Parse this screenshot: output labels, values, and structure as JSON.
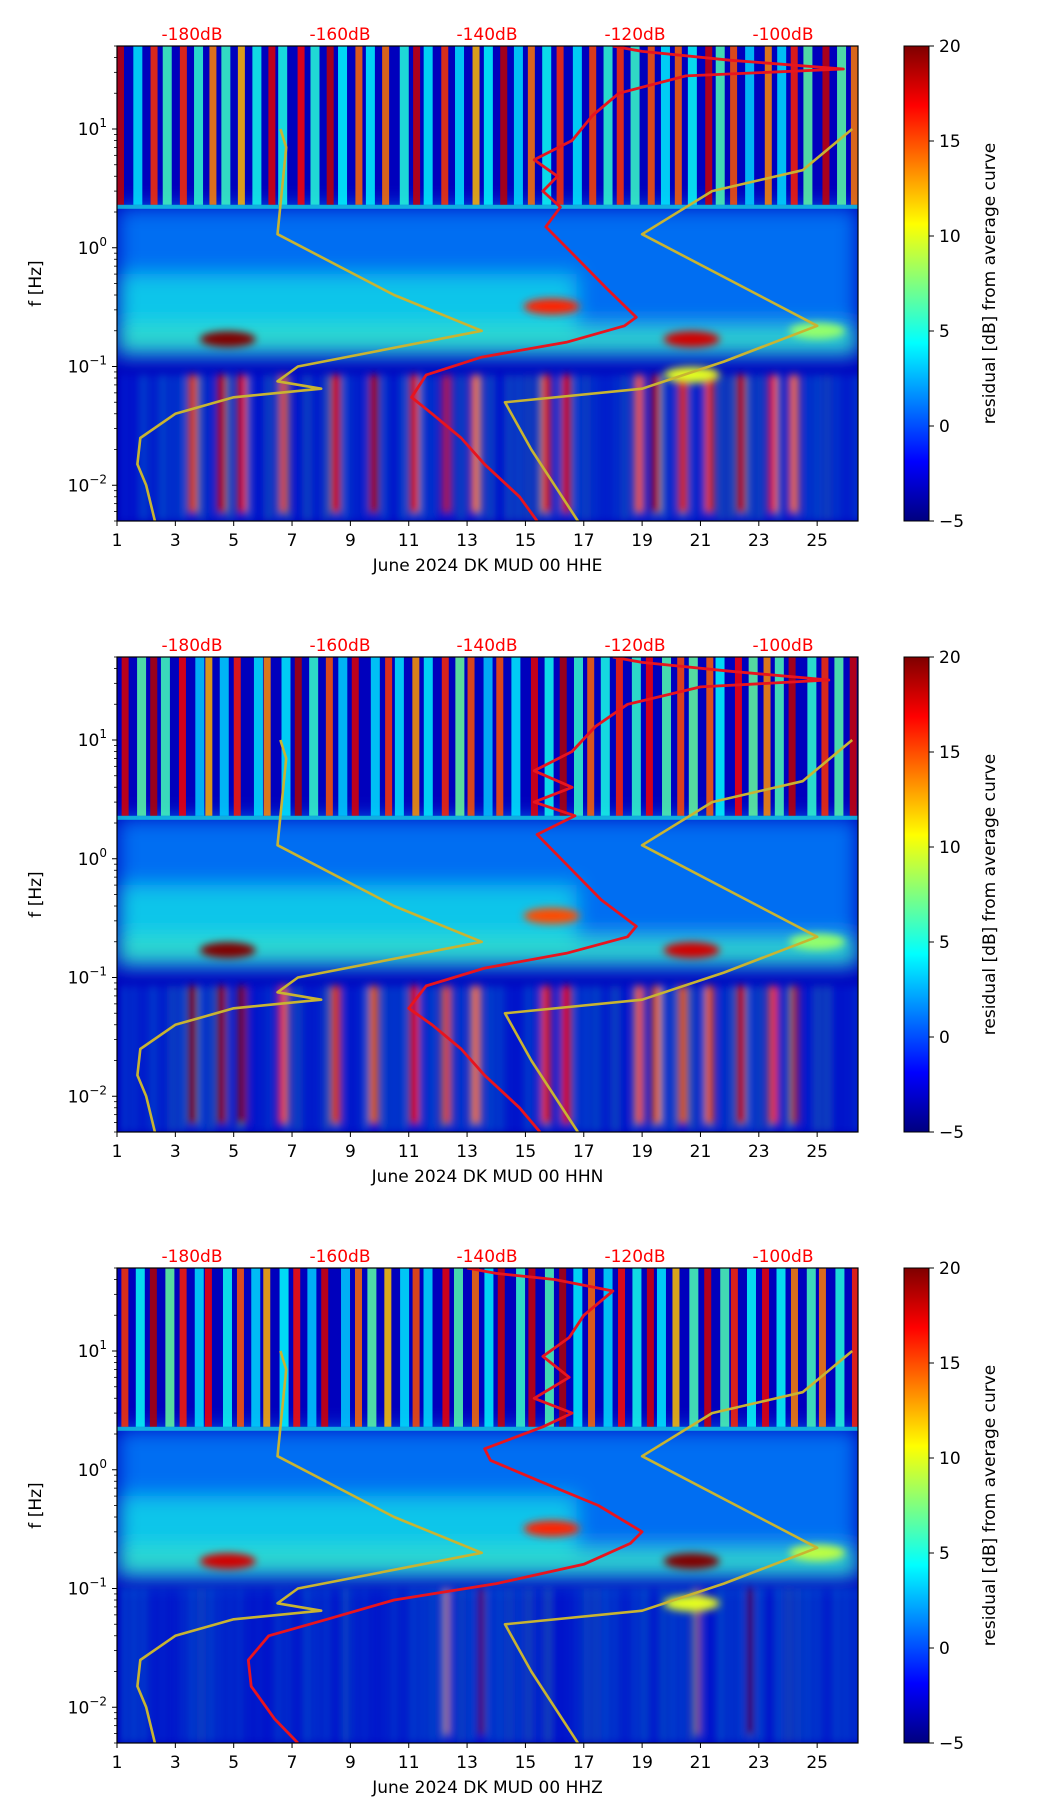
{
  "figure": {
    "colormap": "jet",
    "colors": {
      "noise_model": "#c8b432",
      "average": "#e8141e",
      "db_label": "#ff0000"
    }
  },
  "chart_data": [
    {
      "type": "heatmap",
      "channel": "HHE",
      "xlabel": "June 2024 DK MUD 00 HHE",
      "ylabel": "f [Hz]",
      "colorbar_label": "residual [dB] from average curve",
      "x_ticks": [
        "1",
        "3",
        "5",
        "7",
        "9",
        "11",
        "13",
        "15",
        "17",
        "19",
        "21",
        "23",
        "25"
      ],
      "y_ticks": [
        {
          "base": "10",
          "exp": "−2",
          "value": 0.01
        },
        {
          "base": "10",
          "exp": "−1",
          "value": 0.1
        },
        {
          "base": "10",
          "exp": "0",
          "value": 1
        },
        {
          "base": "10",
          "exp": "1",
          "value": 10
        }
      ],
      "colorbar_ticks": [
        "−5",
        "0",
        "5",
        "10",
        "15",
        "20"
      ],
      "db_axis_ticks": [
        "-180dB",
        "-160dB",
        "-140dB",
        "-120dB",
        "-100dB"
      ],
      "xlim": [
        1,
        26.4
      ],
      "ylim": [
        0.005,
        50
      ],
      "clim": [
        -5,
        20
      ],
      "average_curve": [
        [
          15.4,
          0.005
        ],
        [
          14.8,
          0.008
        ],
        [
          13.6,
          0.015
        ],
        [
          12.8,
          0.025
        ],
        [
          11.8,
          0.04
        ],
        [
          11.1,
          0.055
        ],
        [
          11.6,
          0.085
        ],
        [
          13.5,
          0.12
        ],
        [
          16.4,
          0.16
        ],
        [
          18.4,
          0.22
        ],
        [
          18.8,
          0.26
        ],
        [
          17.8,
          0.45
        ],
        [
          16.6,
          0.9
        ],
        [
          15.7,
          1.5
        ],
        [
          16.2,
          2.2
        ],
        [
          15.6,
          3
        ],
        [
          16.1,
          4
        ],
        [
          15.3,
          5.5
        ],
        [
          16.6,
          8
        ],
        [
          17.3,
          13
        ],
        [
          18.2,
          20
        ],
        [
          20.5,
          28
        ],
        [
          25.9,
          32
        ],
        [
          22,
          38
        ],
        [
          19,
          45
        ],
        [
          18,
          50
        ]
      ],
      "noise_model_low": [
        [
          2.3,
          0.005
        ],
        [
          2,
          0.01
        ],
        [
          1.7,
          0.015
        ],
        [
          1.8,
          0.025
        ],
        [
          3,
          0.04
        ],
        [
          5,
          0.055
        ],
        [
          8,
          0.065
        ],
        [
          6.5,
          0.075
        ],
        [
          7.2,
          0.1
        ],
        [
          13.5,
          0.2
        ],
        [
          10.5,
          0.4
        ],
        [
          6.5,
          1.3
        ],
        [
          6.8,
          7
        ],
        [
          6.6,
          10
        ]
      ],
      "noise_model_high": [
        [
          16.8,
          0.005
        ],
        [
          15.2,
          0.02
        ],
        [
          14.3,
          0.05
        ],
        [
          19,
          0.065
        ],
        [
          21.8,
          0.11
        ],
        [
          25,
          0.22
        ],
        [
          19,
          1.3
        ],
        [
          21.4,
          3
        ],
        [
          24.5,
          4.5
        ],
        [
          26.2,
          10
        ]
      ],
      "bright_streaks": [
        3.6,
        4.6,
        5.3,
        6.7,
        8.5,
        9.8,
        11.2,
        12.3,
        13.3,
        15.7,
        16.4,
        18.9,
        19.5,
        20.4,
        21.3,
        22.4,
        23.5,
        24.2
      ],
      "hotspots": [
        [
          4.8,
          0.17,
          20
        ],
        [
          15.9,
          0.32,
          16
        ],
        [
          20.7,
          0.17,
          18
        ],
        [
          20.7,
          0.085,
          10
        ],
        [
          25,
          0.2,
          8
        ]
      ]
    },
    {
      "type": "heatmap",
      "channel": "HHN",
      "xlabel": "June 2024 DK MUD 00 HHN",
      "ylabel": "f [Hz]",
      "colorbar_label": "residual [dB] from average curve",
      "x_ticks": [
        "1",
        "3",
        "5",
        "7",
        "9",
        "11",
        "13",
        "15",
        "17",
        "19",
        "21",
        "23",
        "25"
      ],
      "y_ticks": [
        {
          "base": "10",
          "exp": "−2",
          "value": 0.01
        },
        {
          "base": "10",
          "exp": "−1",
          "value": 0.1
        },
        {
          "base": "10",
          "exp": "0",
          "value": 1
        },
        {
          "base": "10",
          "exp": "1",
          "value": 10
        }
      ],
      "colorbar_ticks": [
        "−5",
        "0",
        "5",
        "10",
        "15",
        "20"
      ],
      "db_axis_ticks": [
        "-180dB",
        "-160dB",
        "-140dB",
        "-120dB",
        "-100dB"
      ],
      "xlim": [
        1,
        26.4
      ],
      "ylim": [
        0.005,
        50
      ],
      "clim": [
        -5,
        20
      ],
      "average_curve": [
        [
          15.5,
          0.005
        ],
        [
          14.8,
          0.008
        ],
        [
          13.6,
          0.015
        ],
        [
          12.8,
          0.025
        ],
        [
          11.8,
          0.04
        ],
        [
          11,
          0.055
        ],
        [
          11.6,
          0.085
        ],
        [
          13.6,
          0.12
        ],
        [
          16.4,
          0.16
        ],
        [
          18.5,
          0.22
        ],
        [
          18.8,
          0.27
        ],
        [
          17.6,
          0.45
        ],
        [
          16.4,
          0.9
        ],
        [
          15.4,
          1.6
        ],
        [
          16.7,
          2.3
        ],
        [
          15.3,
          3
        ],
        [
          16.6,
          4
        ],
        [
          15.3,
          5.5
        ],
        [
          16.6,
          8
        ],
        [
          17.4,
          13
        ],
        [
          18.5,
          20
        ],
        [
          21,
          28
        ],
        [
          25.4,
          32
        ],
        [
          22,
          38
        ],
        [
          19,
          45
        ],
        [
          18,
          50
        ]
      ],
      "noise_model_low": [
        [
          2.3,
          0.005
        ],
        [
          2,
          0.01
        ],
        [
          1.7,
          0.015
        ],
        [
          1.8,
          0.025
        ],
        [
          3,
          0.04
        ],
        [
          5,
          0.055
        ],
        [
          8,
          0.065
        ],
        [
          6.5,
          0.075
        ],
        [
          7.2,
          0.1
        ],
        [
          13.5,
          0.2
        ],
        [
          10.5,
          0.4
        ],
        [
          6.5,
          1.3
        ],
        [
          6.8,
          7
        ],
        [
          6.6,
          10
        ]
      ],
      "noise_model_high": [
        [
          16.8,
          0.005
        ],
        [
          15.2,
          0.02
        ],
        [
          14.3,
          0.05
        ],
        [
          19,
          0.065
        ],
        [
          21.8,
          0.11
        ],
        [
          25,
          0.22
        ],
        [
          19,
          1.3
        ],
        [
          21.4,
          3
        ],
        [
          24.5,
          4.5
        ],
        [
          26.2,
          10
        ]
      ],
      "bright_streaks": [
        3.6,
        4.6,
        5.3,
        6.7,
        8.5,
        9.8,
        11.2,
        12.3,
        13.3,
        15.7,
        16.4,
        18.9,
        19.5,
        20.4,
        21.3,
        22.4,
        23.5,
        24.2
      ],
      "hotspots": [
        [
          4.8,
          0.17,
          20
        ],
        [
          15.9,
          0.33,
          15
        ],
        [
          20.7,
          0.17,
          18
        ],
        [
          25,
          0.2,
          8
        ]
      ]
    },
    {
      "type": "heatmap",
      "channel": "HHZ",
      "xlabel": "June 2024 DK MUD 00 HHZ",
      "ylabel": "f [Hz]",
      "colorbar_label": "residual [dB] from average curve",
      "x_ticks": [
        "1",
        "3",
        "5",
        "7",
        "9",
        "11",
        "13",
        "15",
        "17",
        "19",
        "21",
        "23",
        "25"
      ],
      "y_ticks": [
        {
          "base": "10",
          "exp": "−2",
          "value": 0.01
        },
        {
          "base": "10",
          "exp": "−1",
          "value": 0.1
        },
        {
          "base": "10",
          "exp": "0",
          "value": 1
        },
        {
          "base": "10",
          "exp": "1",
          "value": 10
        }
      ],
      "colorbar_ticks": [
        "−5",
        "0",
        "5",
        "10",
        "15",
        "20"
      ],
      "db_axis_ticks": [
        "-180dB",
        "-160dB",
        "-140dB",
        "-120dB",
        "-100dB"
      ],
      "xlim": [
        1,
        26.4
      ],
      "ylim": [
        0.005,
        50
      ],
      "clim": [
        -5,
        20
      ],
      "average_curve": [
        [
          7.2,
          0.005
        ],
        [
          6.4,
          0.008
        ],
        [
          5.6,
          0.015
        ],
        [
          5.5,
          0.025
        ],
        [
          6.2,
          0.04
        ],
        [
          8.2,
          0.055
        ],
        [
          10.5,
          0.08
        ],
        [
          14,
          0.11
        ],
        [
          17,
          0.16
        ],
        [
          18.6,
          0.24
        ],
        [
          19,
          0.3
        ],
        [
          17.5,
          0.5
        ],
        [
          15.5,
          0.8
        ],
        [
          13.8,
          1.2
        ],
        [
          13.6,
          1.5
        ],
        [
          15.6,
          2.3
        ],
        [
          16.6,
          3
        ],
        [
          15.3,
          4
        ],
        [
          16.5,
          6
        ],
        [
          15.6,
          9
        ],
        [
          16.5,
          13
        ],
        [
          17,
          20
        ],
        [
          18,
          32
        ],
        [
          16,
          40
        ],
        [
          14,
          45
        ],
        [
          13,
          50
        ]
      ],
      "noise_model_low": [
        [
          2.3,
          0.005
        ],
        [
          2,
          0.01
        ],
        [
          1.7,
          0.015
        ],
        [
          1.8,
          0.025
        ],
        [
          3,
          0.04
        ],
        [
          5,
          0.055
        ],
        [
          8,
          0.065
        ],
        [
          6.5,
          0.075
        ],
        [
          7.2,
          0.1
        ],
        [
          13.5,
          0.2
        ],
        [
          10.5,
          0.4
        ],
        [
          6.5,
          1.3
        ],
        [
          6.8,
          7
        ],
        [
          6.6,
          10
        ]
      ],
      "noise_model_high": [
        [
          16.8,
          0.005
        ],
        [
          15.2,
          0.02
        ],
        [
          14.3,
          0.05
        ],
        [
          19,
          0.065
        ],
        [
          21.8,
          0.11
        ],
        [
          25,
          0.22
        ],
        [
          19,
          1.3
        ],
        [
          21.4,
          3
        ],
        [
          24.5,
          4.5
        ],
        [
          26.2,
          10
        ]
      ],
      "bright_streaks": [
        12.3,
        13.5,
        20.9,
        22.7
      ],
      "hotspots": [
        [
          4.8,
          0.17,
          18
        ],
        [
          15.9,
          0.32,
          16
        ],
        [
          20.7,
          0.17,
          20
        ],
        [
          20.7,
          0.075,
          10
        ],
        [
          25,
          0.2,
          9
        ]
      ]
    }
  ]
}
